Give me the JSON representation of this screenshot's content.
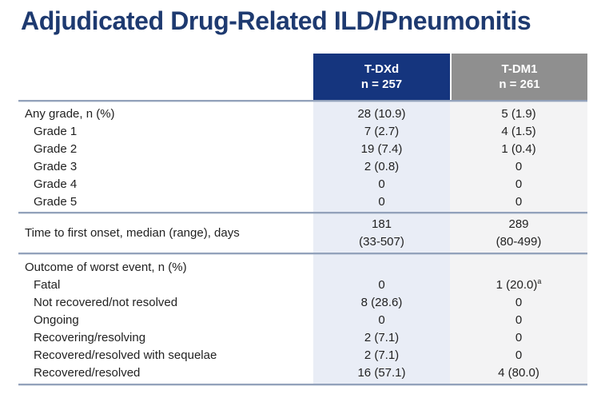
{
  "slide": {
    "title": "Adjudicated Drug-Related ILD/Pneumonitis"
  },
  "table": {
    "columns": [
      {
        "drug": "T-DXd",
        "n": "n = 257"
      },
      {
        "drug": "T-DM1",
        "n": "n = 261"
      }
    ],
    "sections": [
      {
        "name": "grades",
        "rows": [
          {
            "label": "Any grade, n (%)",
            "indent": false,
            "values": [
              "28 (10.9)",
              "5 (1.9)"
            ]
          },
          {
            "label": "Grade 1",
            "indent": true,
            "values": [
              "7 (2.7)",
              "4 (1.5)"
            ]
          },
          {
            "label": "Grade 2",
            "indent": true,
            "values": [
              "19 (7.4)",
              "1 (0.4)"
            ]
          },
          {
            "label": "Grade 3",
            "indent": true,
            "values": [
              "2 (0.8)",
              "0"
            ]
          },
          {
            "label": "Grade 4",
            "indent": true,
            "values": [
              "0",
              "0"
            ]
          },
          {
            "label": "Grade 5",
            "indent": true,
            "values": [
              "0",
              "0"
            ]
          }
        ]
      },
      {
        "name": "time-to-onset",
        "rows": [
          {
            "label": "Time to first onset, median (range), days",
            "indent": false,
            "values_lines": [
              [
                "181",
                "(33-507)"
              ],
              [
                "289",
                "(80-499)"
              ]
            ]
          }
        ]
      },
      {
        "name": "outcomes",
        "rows": [
          {
            "label": "Outcome of worst event, n (%)",
            "indent": false,
            "values": [
              "",
              ""
            ]
          },
          {
            "label": "Fatal",
            "indent": true,
            "values": [
              "0",
              "1 (20.0)"
            ],
            "footnote_marker": "a"
          },
          {
            "label": "Not recovered/not resolved",
            "indent": true,
            "values": [
              "8 (28.6)",
              "0"
            ]
          },
          {
            "label": "Ongoing",
            "indent": true,
            "values": [
              "0",
              "0"
            ]
          },
          {
            "label": "Recovering/resolving",
            "indent": true,
            "values": [
              "2 (7.1)",
              "0"
            ]
          },
          {
            "label": "Recovered/resolved with sequelae",
            "indent": true,
            "values": [
              "2 (7.1)",
              "0"
            ]
          },
          {
            "label": "Recovered/resolved",
            "indent": true,
            "values": [
              "16 (57.1)",
              "4 (80.0)"
            ]
          }
        ]
      }
    ]
  },
  "colors": {
    "title_text": "#1E3A70",
    "tdxd_header_bg": "#15357E",
    "tdm1_header_bg": "#8F8F8F",
    "header_text": "#FFFFFF",
    "tdxd_column_bg": "#E9EDF6",
    "tdm1_column_bg": "#F3F3F4",
    "section_rule": "#93A2BB",
    "body_text": "#222222"
  }
}
